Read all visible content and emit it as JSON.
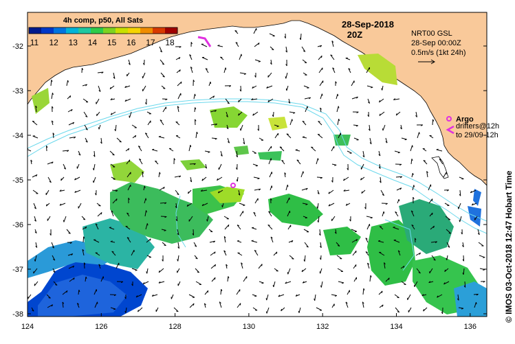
{
  "title": {
    "date": "28-Sep-2018",
    "time": "20Z"
  },
  "colorbar": {
    "title": "4h comp, p50, All Sats",
    "ticks": [
      "11",
      "12",
      "13",
      "14",
      "15",
      "16",
      "17",
      "18"
    ],
    "colors": [
      "#001a8c",
      "#0038c8",
      "#0074e0",
      "#00b4d8",
      "#20c8a0",
      "#2ecc4a",
      "#7ed321",
      "#c8e000",
      "#f5d400",
      "#f08c00",
      "#d83a00",
      "#a00000"
    ]
  },
  "currents_legend": {
    "source": "NRT00 GSL",
    "datetime": "28-Sep 00:00Z",
    "scale": "0.5m/s (1kt 24h)"
  },
  "argo_legend": {
    "label": "Argo",
    "drifters_line1": "drifters@12h",
    "drifters_line2": "to 29/09-12h"
  },
  "axes": {
    "y_ticks": [
      "-32",
      "-33",
      "-34",
      "-35",
      "-36",
      "-37",
      "-38"
    ],
    "x_ticks": [
      "124",
      "126",
      "128",
      "130",
      "132",
      "134",
      "136"
    ]
  },
  "credit": "© IMOS 03-Oct-2018 12:47 Hobart Time",
  "colors": {
    "land": "#f9c99a",
    "ocean": "#ffffff",
    "contour": "#6ad8ec",
    "argo": "#e030e0"
  }
}
